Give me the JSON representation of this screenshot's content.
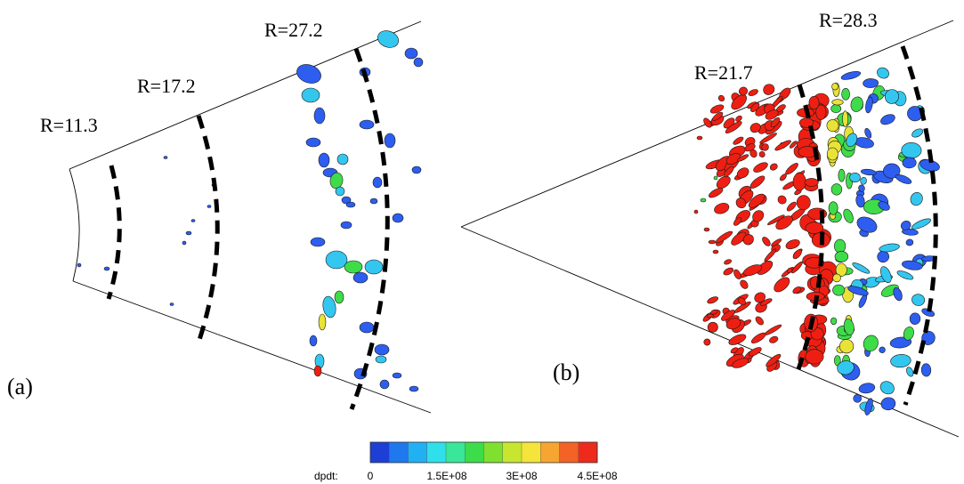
{
  "panels": [
    {
      "id": "a",
      "label": "(a)",
      "radius_labels": [
        "R=11.3",
        "R=17.2",
        "R=27.2"
      ]
    },
    {
      "id": "b",
      "label": "(b)",
      "radius_labels": [
        "R=21.7",
        "R=28.3"
      ]
    }
  ],
  "colorbar": {
    "variable_label": "dpdt:",
    "tick_labels": [
      "0",
      "1.5E+08",
      "3E+08",
      "4.5E+08"
    ],
    "colors": [
      "#1d3fd6",
      "#1f78ee",
      "#21b1f3",
      "#2fe0ea",
      "#39e69a",
      "#3ddc4a",
      "#7fe030",
      "#c8e62f",
      "#f5e43a",
      "#f7a532",
      "#f36226",
      "#ee2a1c"
    ]
  },
  "colors": {
    "contour_blue": "#2d5ef0",
    "contour_cyan": "#33c7f0",
    "contour_green": "#3fdc4a",
    "contour_yellow": "#e9e337",
    "contour_red": "#ee1f12",
    "dashed_line": "#000000"
  }
}
